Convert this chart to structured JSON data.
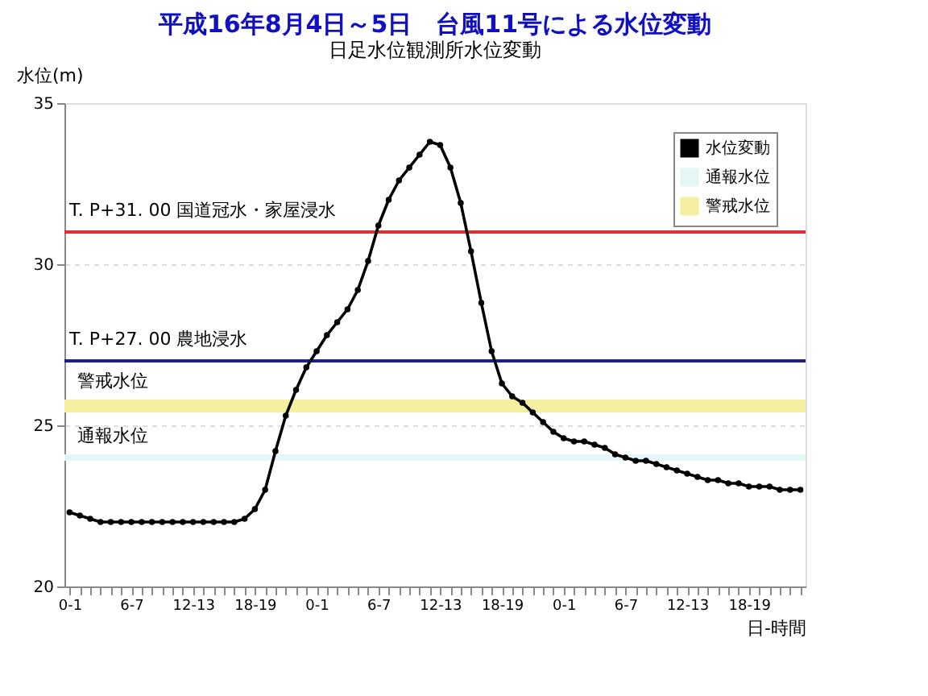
{
  "chart_data": {
    "type": "line",
    "title": "平成16年8月4日～5日　台風11号による水位変動",
    "subtitle": "日足水位観測所水位変動",
    "ylabel": "水位(m)",
    "xlabel": "日-時間",
    "categories": [
      "0-1",
      null,
      null,
      null,
      null,
      null,
      "6-7",
      null,
      null,
      null,
      null,
      null,
      "12-13",
      null,
      null,
      null,
      null,
      null,
      "18-19",
      null,
      null,
      null,
      null,
      null,
      "0-1",
      null,
      null,
      null,
      null,
      null,
      "6-7",
      null,
      null,
      null,
      null,
      null,
      "12-13",
      null,
      null,
      null,
      null,
      null,
      "18-19",
      null,
      null,
      null,
      null,
      null,
      "0-1",
      null,
      null,
      null,
      null,
      null,
      "6-7",
      null,
      null,
      null,
      null,
      null,
      "12-13",
      null,
      null,
      null,
      null,
      null,
      "18-19",
      null,
      null,
      null,
      null,
      null
    ],
    "series": [
      {
        "name": "水位変動",
        "color": "#000000",
        "values": [
          22.3,
          22.2,
          22.1,
          22.0,
          22.0,
          22.0,
          22.0,
          22.0,
          22.0,
          22.0,
          22.0,
          22.0,
          22.0,
          22.0,
          22.0,
          22.0,
          22.0,
          22.1,
          22.4,
          23.0,
          24.2,
          25.3,
          26.1,
          26.8,
          27.3,
          27.8,
          28.2,
          28.6,
          29.2,
          30.1,
          31.2,
          32.0,
          32.6,
          33.0,
          33.4,
          33.8,
          33.7,
          33.0,
          31.9,
          30.4,
          28.8,
          27.3,
          26.3,
          25.9,
          25.7,
          25.4,
          25.1,
          24.8,
          24.6,
          24.5,
          24.5,
          24.4,
          24.3,
          24.1,
          24.0,
          23.9,
          23.9,
          23.8,
          23.7,
          23.6,
          23.5,
          23.4,
          23.3,
          23.3,
          23.2,
          23.2,
          23.1,
          23.1,
          23.1,
          23.0,
          23.0,
          23.0
        ]
      }
    ],
    "ylim": [
      20,
      35
    ],
    "yticks": [
      20,
      25,
      30,
      35
    ],
    "grid": "y",
    "marker": "circle",
    "line_style": "solid",
    "legend": "top right",
    "ref_lines": [
      {
        "axis": "y",
        "value": 31,
        "label": "T. P+31. 00  国道冠水・家屋浸水",
        "color": "#e03030"
      },
      {
        "axis": "y",
        "value": 27,
        "label": "T. P+27. 00  農地浸水",
        "color": "#202080"
      }
    ],
    "bands": [
      {
        "axis": "y",
        "from": 23.9,
        "to": 24.1,
        "label": "通報水位",
        "color": "#e4f6f6"
      },
      {
        "axis": "y",
        "from": 25.4,
        "to": 25.8,
        "label": "警戒水位",
        "color": "#f4f0a0"
      }
    ]
  }
}
